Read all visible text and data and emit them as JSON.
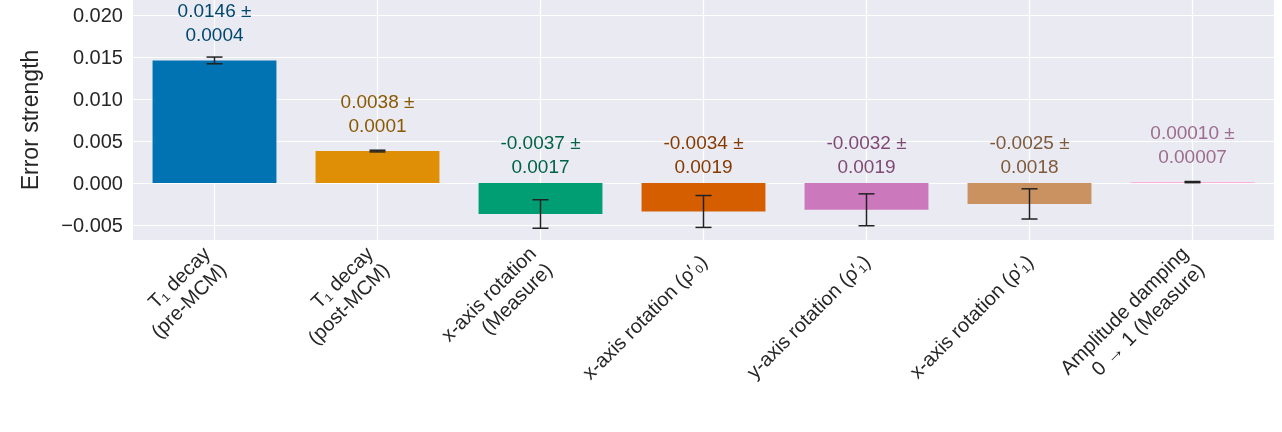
{
  "chart_data": {
    "type": "bar",
    "ylabel": "Error strength",
    "categories": [
      "T₁ decay\n(pre-MCM)",
      "T₁ decay\n(post-MCM)",
      "x-axis rotation\n(Measure)",
      "x-axis rotation (ρ′₀)",
      "y-axis rotation (ρ′₁)",
      "x-axis rotation (ρ′₁)",
      "Amplitude damping\n0 → 1 (Measure)"
    ],
    "values": [
      0.0146,
      0.0038,
      -0.0037,
      -0.0034,
      -0.0032,
      -0.0025,
      0.0001
    ],
    "errors": [
      0.0004,
      0.0001,
      0.0017,
      0.0019,
      0.0019,
      0.0018,
      7e-05
    ],
    "colors": [
      "#0173b2",
      "#de8f05",
      "#029e73",
      "#d55e00",
      "#cc78bc",
      "#ca9161",
      "#fbafe4"
    ],
    "value_labels": [
      "0.0146 ±\n0.0004",
      "0.0038 ±\n0.0001",
      "-0.0037 ±\n0.0017",
      "-0.0034 ±\n0.0019",
      "-0.0032 ±\n0.0019",
      "-0.0025 ±\n0.0018",
      "0.00010 ±\n0.00007"
    ],
    "ylim": [
      -0.0068,
      0.0218
    ],
    "yticks": [
      {
        "value": -0.005,
        "label": "−0.005"
      },
      {
        "value": 0,
        "label": "0.000"
      },
      {
        "value": 0.005,
        "label": "0.005"
      },
      {
        "value": 0.01,
        "label": "0.010"
      },
      {
        "value": 0.015,
        "label": "0.015"
      },
      {
        "value": 0.02,
        "label": "0.020"
      }
    ],
    "grid": true
  }
}
